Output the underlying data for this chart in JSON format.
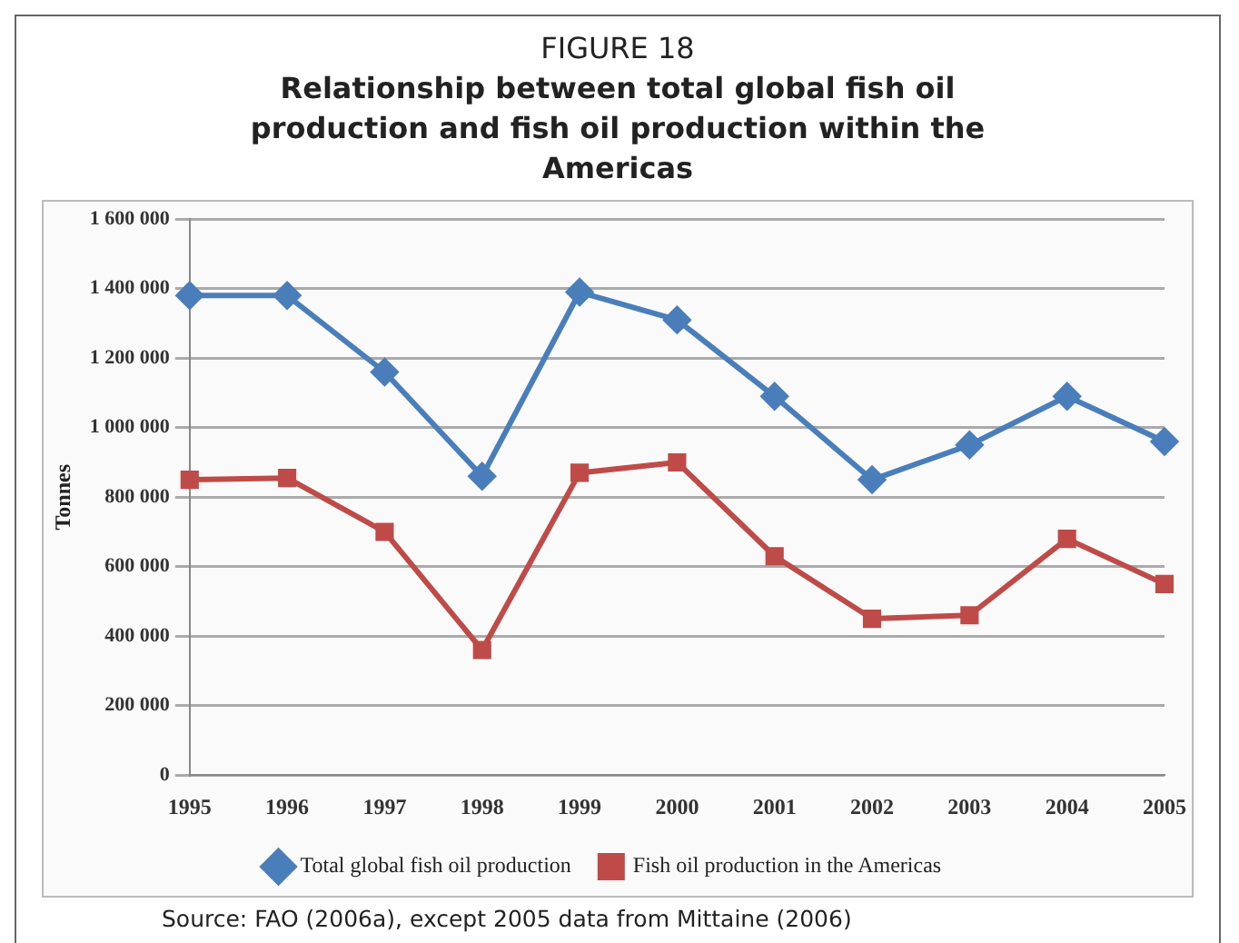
{
  "chart_data": {
    "type": "line",
    "title": "FIGURE 18",
    "subtitle": "Relationship between total global fish oil production and fish oil production within the Americas",
    "ylabel": "Tonnes",
    "categories": [
      "1995",
      "1996",
      "1997",
      "1998",
      "1999",
      "2000",
      "2001",
      "2002",
      "2003",
      "2004",
      "2005"
    ],
    "series": [
      {
        "name": "Total global fish oil production",
        "color": "#4a7ebb",
        "marker": "diamond",
        "values": [
          1380000,
          1380000,
          1160000,
          860000,
          1390000,
          1310000,
          1090000,
          850000,
          950000,
          1090000,
          960000
        ]
      },
      {
        "name": "Fish oil production in the Americas",
        "color": "#be4b48",
        "marker": "square",
        "values": [
          850000,
          855000,
          700000,
          360000,
          870000,
          900000,
          630000,
          450000,
          460000,
          680000,
          550000
        ]
      }
    ],
    "ylim": [
      0,
      1600000
    ],
    "yticks": [
      {
        "value": 0,
        "label": "0"
      },
      {
        "value": 200000,
        "label": "200 000"
      },
      {
        "value": 400000,
        "label": "400 000"
      },
      {
        "value": 600000,
        "label": "600 000"
      },
      {
        "value": 800000,
        "label": "800 000"
      },
      {
        "value": 1000000,
        "label": "1 000 000"
      },
      {
        "value": 1200000,
        "label": "1 200 000"
      },
      {
        "value": 1400000,
        "label": "1 400 000"
      },
      {
        "value": 1600000,
        "label": "1 600 000"
      }
    ],
    "grid": "y",
    "legend": "bottom",
    "line_style": "solid",
    "annotations": [
      "Source: FAO (2006a), except 2005 data from Mittaine (2006)"
    ]
  }
}
